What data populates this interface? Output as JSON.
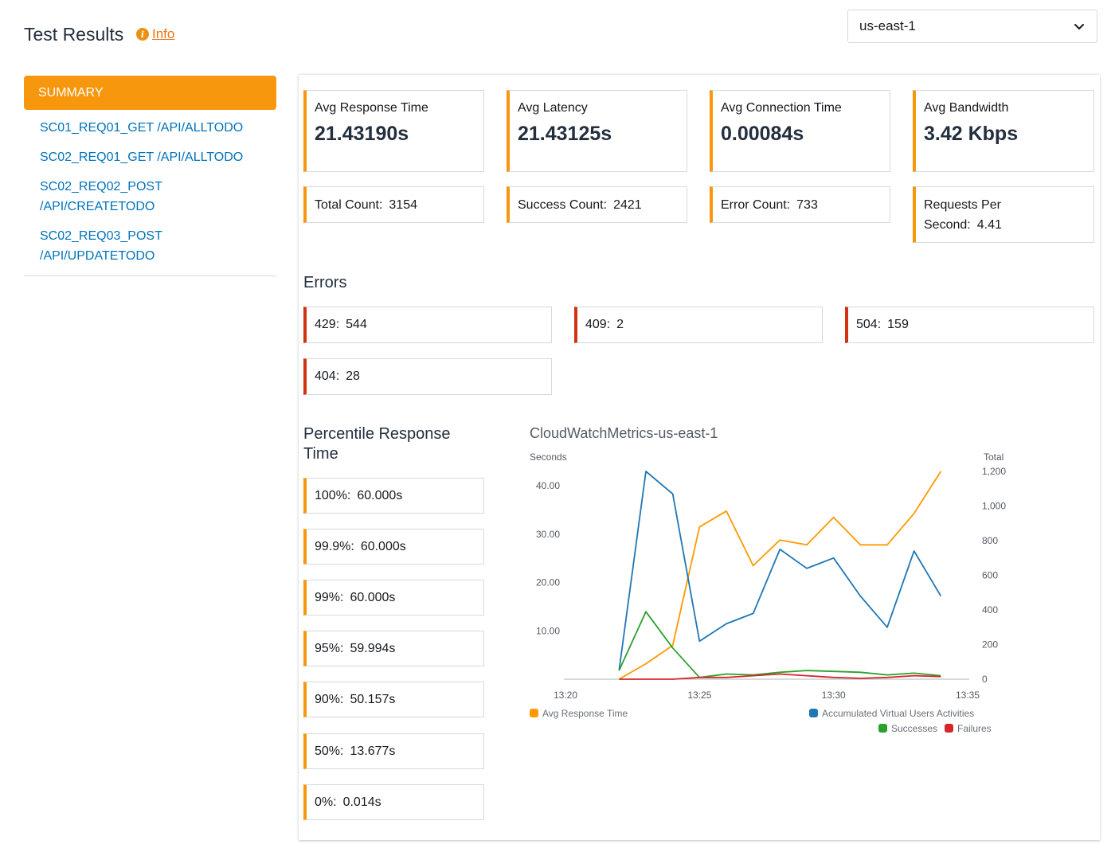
{
  "header": {
    "title": "Test Results",
    "info_label": "Info",
    "region": "us-east-1"
  },
  "sidebar": {
    "summary_label": "SUMMARY",
    "items": [
      {
        "label": "SC01_REQ01_GET /API/ALLTODO"
      },
      {
        "label": "SC02_REQ01_GET /API/ALLTODO"
      },
      {
        "label": "SC02_REQ02_POST\n/API/CREATETODO"
      },
      {
        "label": "SC02_REQ03_POST\n/API/UPDATETODO"
      }
    ]
  },
  "metrics": [
    {
      "label": "Avg Response Time",
      "value": "21.43190s"
    },
    {
      "label": "Avg Latency",
      "value": "21.43125s"
    },
    {
      "label": "Avg Connection Time",
      "value": "0.00084s"
    },
    {
      "label": "Avg Bandwidth",
      "value": "3.42 Kbps"
    }
  ],
  "counts": [
    {
      "label": "Total Count:",
      "value": "3154"
    },
    {
      "label": "Success Count:",
      "value": "2421"
    },
    {
      "label": "Error Count:",
      "value": "733"
    },
    {
      "label": "Requests Per",
      "label2": "Second:",
      "value": "4.41"
    }
  ],
  "errors": {
    "title": "Errors",
    "items": [
      {
        "code": "429:",
        "count": "544"
      },
      {
        "code": "409:",
        "count": "2"
      },
      {
        "code": "504:",
        "count": "159"
      },
      {
        "code": "404:",
        "count": "28"
      }
    ]
  },
  "percentiles": {
    "title_line1": "Percentile Response",
    "title_line2": "Time",
    "items": [
      {
        "label": "100%:",
        "value": "60.000s"
      },
      {
        "label": "99.9%:",
        "value": "60.000s"
      },
      {
        "label": "99%:",
        "value": "60.000s"
      },
      {
        "label": "95%:",
        "value": "59.994s"
      },
      {
        "label": "90%:",
        "value": "50.157s"
      },
      {
        "label": "50%:",
        "value": "13.677s"
      },
      {
        "label": "0%:",
        "value": "0.014s"
      }
    ]
  },
  "chart_data": {
    "type": "line",
    "title": "CloudWatchMetrics-us-east-1",
    "ylabel_left": "Seconds",
    "ylabel_right": "Total",
    "x": [
      "13:22",
      "13:23",
      "13:24",
      "13:25",
      "13:26",
      "13:27",
      "13:28",
      "13:29",
      "13:30",
      "13:31",
      "13:32",
      "13:33",
      "13:34"
    ],
    "x_ticks": [
      "13:20",
      "13:25",
      "13:30",
      "13:35"
    ],
    "x_range": [
      20,
      35
    ],
    "y_left_ticks": [
      "10.00",
      "20.00",
      "30.00",
      "40.00"
    ],
    "y_left_range": [
      0,
      43
    ],
    "y_right_ticks": [
      "0",
      "200",
      "400",
      "600",
      "800",
      "1,000",
      "1,200"
    ],
    "y_right_range": [
      0,
      1200
    ],
    "series": [
      {
        "name": "Avg Response Time",
        "axis": "left",
        "color": "#ff9900",
        "values": [
          0,
          3.2,
          7,
          31.5,
          34.8,
          23.5,
          28.8,
          27.8,
          33.5,
          27.8,
          27.8,
          34.3,
          43
        ]
      },
      {
        "name": "Accumulated Virtual Users Activities",
        "axis": "right",
        "color": "#1f77b4",
        "values": [
          50,
          1200,
          1070,
          220,
          320,
          380,
          750,
          640,
          700,
          480,
          300,
          740,
          480
        ]
      },
      {
        "name": "Successes",
        "axis": "right",
        "color": "#2ca02c",
        "values": [
          50,
          390,
          180,
          10,
          30,
          25,
          40,
          50,
          45,
          40,
          25,
          35,
          20
        ]
      },
      {
        "name": "Failures",
        "axis": "right",
        "color": "#d62728",
        "values": [
          0,
          0,
          0,
          10,
          10,
          20,
          30,
          20,
          10,
          5,
          10,
          20,
          15
        ]
      }
    ],
    "legend_placement": "bottom"
  }
}
